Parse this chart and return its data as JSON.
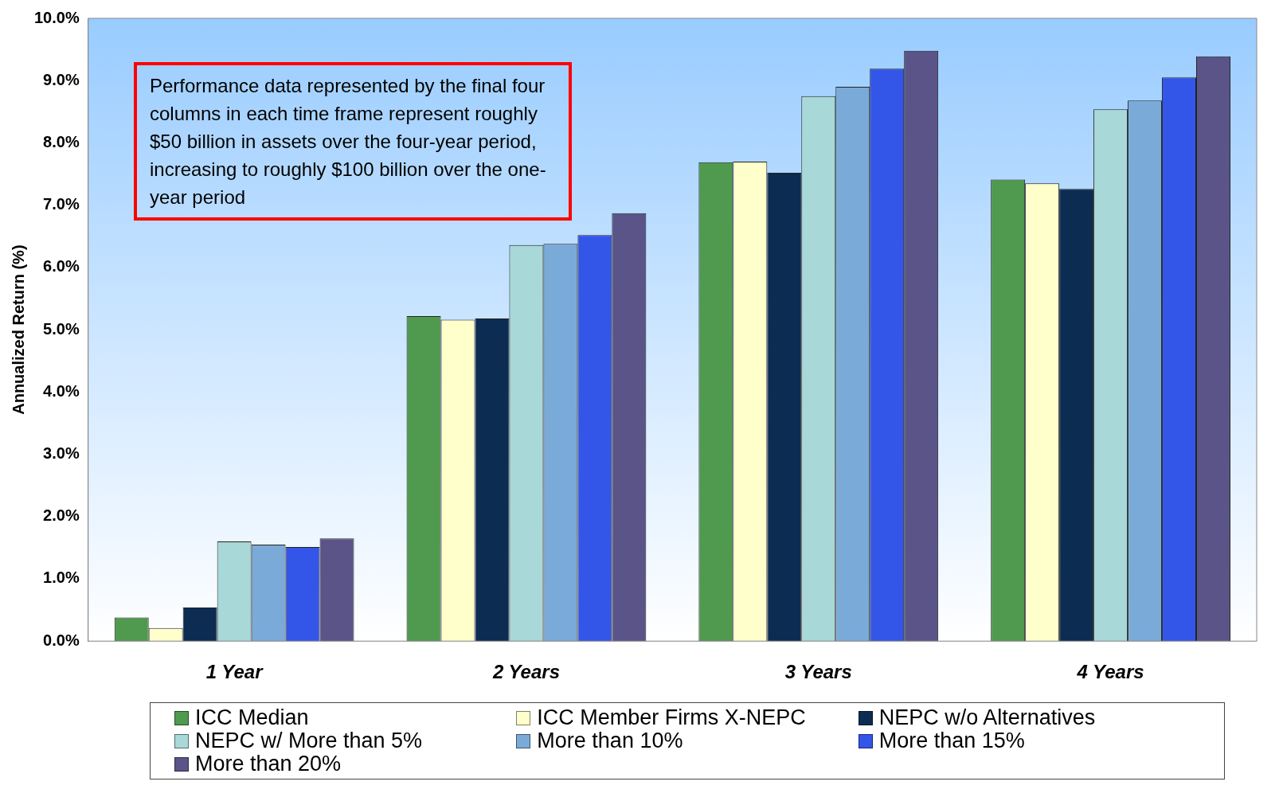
{
  "chart_data": {
    "type": "bar",
    "ylabel": "Annualized Return (%)",
    "categories": [
      "1 Year",
      "2 Years",
      "3 Years",
      "4 Years"
    ],
    "series": [
      {
        "name": "ICC Median",
        "color": "#4f9a4f",
        "values": [
          0.38,
          5.22,
          7.69,
          7.41
        ]
      },
      {
        "name": "ICC Member Firms X-NEPC",
        "color": "#ffffcc",
        "values": [
          0.21,
          5.16,
          7.7,
          7.35
        ]
      },
      {
        "name": "NEPC w/o Alternatives",
        "color": "#0c2c52",
        "values": [
          0.54,
          5.18,
          7.52,
          7.26
        ]
      },
      {
        "name": "NEPC w/ More than 5%",
        "color": "#a8d8d8",
        "values": [
          1.6,
          6.36,
          8.75,
          8.54
        ]
      },
      {
        "name": "More than 10%",
        "color": "#7aaad8",
        "values": [
          1.55,
          6.38,
          8.9,
          8.68
        ]
      },
      {
        "name": "More than 15%",
        "color": "#3355e8",
        "values": [
          1.51,
          6.52,
          9.19,
          9.05
        ]
      },
      {
        "name": "More than 20%",
        "color": "#5a5488",
        "values": [
          1.65,
          6.87,
          9.48,
          9.39
        ]
      }
    ],
    "ylim": [
      0,
      10
    ],
    "yticks": [
      {
        "value": 0,
        "label": "0.0%"
      },
      {
        "value": 1,
        "label": "1.0%"
      },
      {
        "value": 2,
        "label": "2.0%"
      },
      {
        "value": 3,
        "label": "3.0%"
      },
      {
        "value": 4,
        "label": "4.0%"
      },
      {
        "value": 5,
        "label": "5.0%"
      },
      {
        "value": 6,
        "label": "6.0%"
      },
      {
        "value": 7,
        "label": "7.0%"
      },
      {
        "value": 8,
        "label": "8.0%"
      },
      {
        "value": 9,
        "label": "9.0%"
      },
      {
        "value": 10,
        "label": "10.0%"
      }
    ],
    "grid": false,
    "legend": "bottom",
    "annotations": [
      "Performance data represented by the final four columns in each time frame represent roughly $50 billion in assets over the four-year period, increasing to roughly $100 billion over the one-year period"
    ]
  }
}
